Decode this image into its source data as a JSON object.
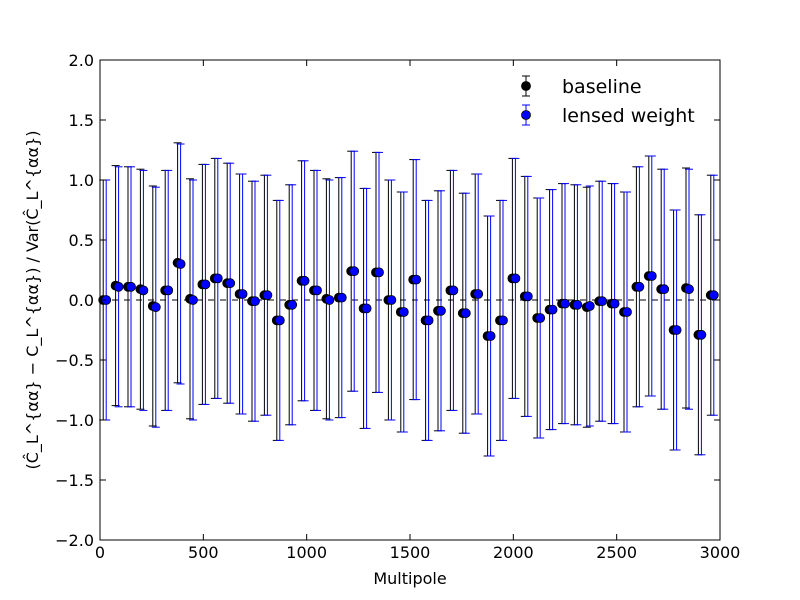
{
  "chart_data": {
    "type": "scatter",
    "xlabel": "Multipole",
    "ylabel": "(Ĉ_L^{αα} − C_L^{αα}) / Var(Ĉ_L^{αα})",
    "xlim": [
      0,
      3000
    ],
    "ylim": [
      -2.0,
      2.0
    ],
    "x_ticks": [
      0,
      500,
      1000,
      1500,
      2000,
      2500,
      3000
    ],
    "x_tick_labels": [
      "0",
      "500",
      "1000",
      "1500",
      "2000",
      "2500",
      "3000"
    ],
    "y_ticks": [
      2.0,
      1.5,
      1.0,
      0.5,
      0.0,
      -0.5,
      -1.0,
      -1.5,
      -2.0
    ],
    "y_tick_labels": [
      "2.0",
      "1.5",
      "1.0",
      "0.5",
      "0.0",
      "−0.5",
      "−1.0",
      "−1.5",
      "−2.0"
    ],
    "grid": false,
    "legend_position": "top-right",
    "reference_line": {
      "y": 0.0,
      "style": "dashed",
      "color": "#000000"
    },
    "x": [
      30,
      90,
      150,
      210,
      270,
      330,
      390,
      450,
      510,
      570,
      630,
      690,
      750,
      810,
      870,
      930,
      990,
      1050,
      1110,
      1170,
      1230,
      1290,
      1350,
      1410,
      1470,
      1530,
      1590,
      1650,
      1710,
      1770,
      1830,
      1890,
      1950,
      2010,
      2070,
      2130,
      2190,
      2250,
      2310,
      2370,
      2430,
      2490,
      2550,
      2610,
      2670,
      2730,
      2790,
      2850,
      2910,
      2970
    ],
    "series": [
      {
        "name": "baseline",
        "color": "#000000",
        "offset_x": -9,
        "values": [
          0.0,
          0.12,
          0.11,
          0.09,
          -0.05,
          0.08,
          0.31,
          0.01,
          0.13,
          0.18,
          0.14,
          0.05,
          -0.01,
          0.04,
          -0.17,
          -0.04,
          0.16,
          0.08,
          0.01,
          0.02,
          0.24,
          -0.07,
          0.23,
          0.0,
          -0.1,
          0.17,
          -0.17,
          -0.09,
          0.08,
          -0.11,
          0.05,
          -0.3,
          -0.17,
          0.18,
          0.03,
          -0.15,
          -0.08,
          -0.03,
          -0.04,
          -0.06,
          -0.01,
          -0.03,
          -0.1,
          0.11,
          0.2,
          0.09,
          -0.25,
          0.1,
          -0.29,
          0.04
        ],
        "errors": [
          1.0,
          1.0,
          1.0,
          1.0,
          1.0,
          1.0,
          1.0,
          1.0,
          1.0,
          1.0,
          1.0,
          1.0,
          1.0,
          1.0,
          1.0,
          1.0,
          1.0,
          1.0,
          1.0,
          1.0,
          1.0,
          1.0,
          1.0,
          1.0,
          1.0,
          1.0,
          1.0,
          1.0,
          1.0,
          1.0,
          1.0,
          1.0,
          1.0,
          1.0,
          1.0,
          1.0,
          1.0,
          1.0,
          1.0,
          1.0,
          1.0,
          1.0,
          1.0,
          1.0,
          1.0,
          1.0,
          1.0,
          1.0,
          1.0,
          1.0
        ]
      },
      {
        "name": "lensed weight",
        "color": "#0000ff",
        "offset_x": 0,
        "values": [
          0.0,
          0.11,
          0.11,
          0.08,
          -0.06,
          0.08,
          0.3,
          0.0,
          0.13,
          0.18,
          0.14,
          0.05,
          -0.01,
          0.04,
          -0.17,
          -0.04,
          0.16,
          0.08,
          0.0,
          0.02,
          0.24,
          -0.07,
          0.23,
          0.0,
          -0.1,
          0.17,
          -0.17,
          -0.09,
          0.08,
          -0.11,
          0.05,
          -0.3,
          -0.17,
          0.18,
          0.03,
          -0.15,
          -0.08,
          -0.03,
          -0.04,
          -0.05,
          -0.01,
          -0.03,
          -0.1,
          0.11,
          0.2,
          0.09,
          -0.25,
          0.09,
          -0.29,
          0.04
        ],
        "errors": [
          1.0,
          1.0,
          1.0,
          1.0,
          1.0,
          1.0,
          1.0,
          1.0,
          1.0,
          1.0,
          1.0,
          1.0,
          1.0,
          1.0,
          1.0,
          1.0,
          1.0,
          1.0,
          1.0,
          1.0,
          1.0,
          1.0,
          1.0,
          1.0,
          1.0,
          1.0,
          1.0,
          1.0,
          1.0,
          1.0,
          1.0,
          1.0,
          1.0,
          1.0,
          1.0,
          1.0,
          1.0,
          1.0,
          1.0,
          1.0,
          1.0,
          1.0,
          1.0,
          1.0,
          1.0,
          1.0,
          1.0,
          1.0,
          1.0,
          1.0
        ]
      }
    ]
  }
}
